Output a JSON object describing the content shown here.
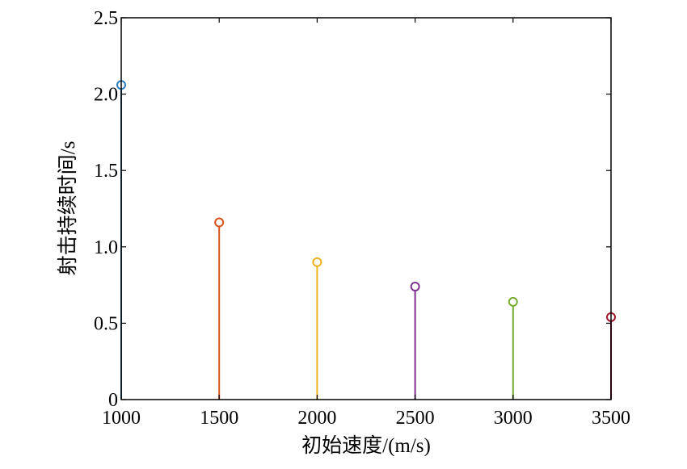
{
  "chart_data": {
    "type": "stem",
    "xlabel": "初始速度/(m/s)",
    "ylabel": "射击持续时间/s",
    "xlim": [
      1000,
      3500
    ],
    "ylim": [
      0,
      2.5
    ],
    "xticks": [
      "1000",
      "1500",
      "2000",
      "2500",
      "3000",
      "3500"
    ],
    "yticks": [
      "0",
      "0.5",
      "1.0",
      "1.5",
      "2.0",
      "2.5"
    ],
    "grid": false,
    "x": [
      1000,
      1500,
      2000,
      2500,
      3000,
      3500
    ],
    "y": [
      2.06,
      1.16,
      0.9,
      0.74,
      0.64,
      0.54
    ],
    "colors": [
      "#2b7bb9",
      "#d95319",
      "#edb120",
      "#7e2f8e",
      "#77ac30",
      "#a2142f"
    ]
  }
}
